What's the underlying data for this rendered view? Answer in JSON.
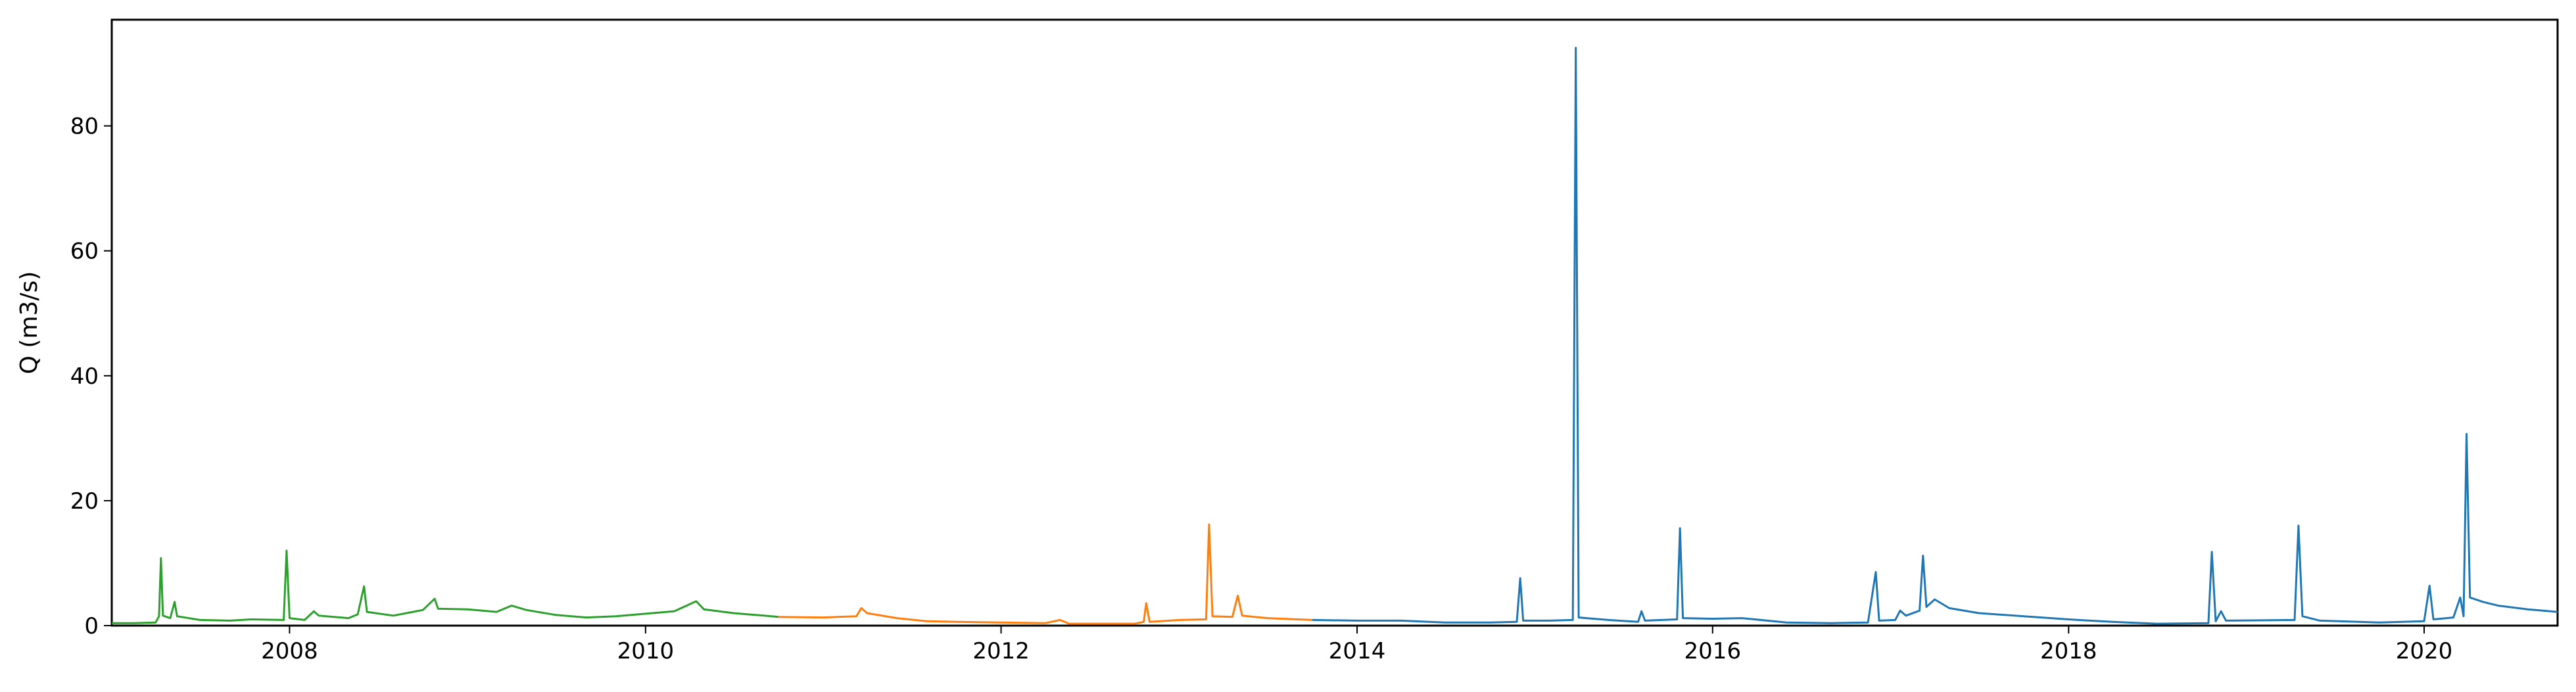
{
  "chart_data": {
    "type": "line",
    "title": "",
    "xlabel": "",
    "ylabel": "Q (m3/s)",
    "xlim": [
      "2007-01-01",
      "2020-10-01"
    ],
    "ylim": [
      0,
      97
    ],
    "x_ticks": [
      {
        "value": "2008-01-01",
        "label": "2008"
      },
      {
        "value": "2010-01-01",
        "label": "2010"
      },
      {
        "value": "2012-01-01",
        "label": "2012"
      },
      {
        "value": "2014-01-01",
        "label": "2014"
      },
      {
        "value": "2016-01-01",
        "label": "2016"
      },
      {
        "value": "2018-01-01",
        "label": "2018"
      },
      {
        "value": "2020-01-01",
        "label": "2020"
      }
    ],
    "y_ticks": [
      0,
      20,
      40,
      60,
      80
    ],
    "grid": false,
    "legend": "none",
    "series": [
      {
        "color": "#2ca02c",
        "points": [
          [
            "2007-01-01",
            0.4
          ],
          [
            "2007-02-15",
            0.4
          ],
          [
            "2007-04-01",
            0.5
          ],
          [
            "2007-04-08",
            1.5
          ],
          [
            "2007-04-12",
            10.8
          ],
          [
            "2007-04-16",
            1.6
          ],
          [
            "2007-05-01",
            1.2
          ],
          [
            "2007-05-10",
            3.8
          ],
          [
            "2007-05-15",
            1.5
          ],
          [
            "2007-07-01",
            0.9
          ],
          [
            "2007-09-01",
            0.8
          ],
          [
            "2007-10-15",
            1.0
          ],
          [
            "2007-12-20",
            0.9
          ],
          [
            "2007-12-26",
            12.0
          ],
          [
            "2008-01-01",
            1.2
          ],
          [
            "2008-02-01",
            0.9
          ],
          [
            "2008-02-20",
            2.3
          ],
          [
            "2008-03-01",
            1.6
          ],
          [
            "2008-05-01",
            1.2
          ],
          [
            "2008-05-20",
            1.8
          ],
          [
            "2008-06-02",
            6.3
          ],
          [
            "2008-06-08",
            2.2
          ],
          [
            "2008-08-01",
            1.6
          ],
          [
            "2008-10-01",
            2.5
          ],
          [
            "2008-10-25",
            4.3
          ],
          [
            "2008-11-01",
            2.7
          ],
          [
            "2009-01-01",
            2.6
          ],
          [
            "2009-03-01",
            2.2
          ],
          [
            "2009-04-01",
            3.2
          ],
          [
            "2009-05-01",
            2.5
          ],
          [
            "2009-07-01",
            1.7
          ],
          [
            "2009-09-01",
            1.3
          ],
          [
            "2009-11-01",
            1.5
          ],
          [
            "2010-01-01",
            1.9
          ],
          [
            "2010-03-01",
            2.3
          ],
          [
            "2010-04-15",
            3.9
          ],
          [
            "2010-05-01",
            2.6
          ],
          [
            "2010-07-01",
            2.0
          ],
          [
            "2010-09-01",
            1.6
          ],
          [
            "2010-10-01",
            1.4
          ]
        ]
      },
      {
        "color": "#ff7f0e",
        "points": [
          [
            "2010-10-01",
            1.4
          ],
          [
            "2011-01-01",
            1.3
          ],
          [
            "2011-03-10",
            1.5
          ],
          [
            "2011-03-20",
            2.8
          ],
          [
            "2011-04-01",
            2.0
          ],
          [
            "2011-06-01",
            1.2
          ],
          [
            "2011-08-01",
            0.7
          ],
          [
            "2011-10-01",
            0.6
          ],
          [
            "2012-01-01",
            0.5
          ],
          [
            "2012-04-01",
            0.4
          ],
          [
            "2012-05-01",
            0.9
          ],
          [
            "2012-05-20",
            0.3
          ],
          [
            "2012-10-01",
            0.3
          ],
          [
            "2012-10-20",
            0.6
          ],
          [
            "2012-10-25",
            3.6
          ],
          [
            "2012-11-01",
            0.6
          ],
          [
            "2013-01-01",
            0.9
          ],
          [
            "2013-02-25",
            1.0
          ],
          [
            "2013-03-03",
            16.2
          ],
          [
            "2013-03-10",
            1.5
          ],
          [
            "2013-04-20",
            1.4
          ],
          [
            "2013-05-01",
            4.8
          ],
          [
            "2013-05-10",
            1.6
          ],
          [
            "2013-07-01",
            1.2
          ],
          [
            "2013-10-01",
            0.9
          ]
        ]
      },
      {
        "color": "#1f77b4",
        "points": [
          [
            "2013-10-01",
            0.9
          ],
          [
            "2014-01-01",
            0.8
          ],
          [
            "2014-04-01",
            0.8
          ],
          [
            "2014-07-01",
            0.5
          ],
          [
            "2014-10-01",
            0.5
          ],
          [
            "2014-11-25",
            0.6
          ],
          [
            "2014-12-02",
            7.6
          ],
          [
            "2014-12-08",
            0.8
          ],
          [
            "2015-02-01",
            0.8
          ],
          [
            "2015-03-20",
            0.9
          ],
          [
            "2015-03-26",
            92.5
          ],
          [
            "2015-04-01",
            1.3
          ],
          [
            "2015-06-01",
            0.9
          ],
          [
            "2015-08-01",
            0.6
          ],
          [
            "2015-08-08",
            2.3
          ],
          [
            "2015-08-15",
            0.8
          ],
          [
            "2015-10-20",
            1.0
          ],
          [
            "2015-10-26",
            15.6
          ],
          [
            "2015-11-01",
            1.2
          ],
          [
            "2016-01-01",
            1.1
          ],
          [
            "2016-03-01",
            1.2
          ],
          [
            "2016-06-01",
            0.5
          ],
          [
            "2016-09-01",
            0.4
          ],
          [
            "2016-11-15",
            0.5
          ],
          [
            "2016-12-01",
            8.6
          ],
          [
            "2016-12-08",
            0.8
          ],
          [
            "2017-01-10",
            0.9
          ],
          [
            "2017-01-20",
            2.4
          ],
          [
            "2017-02-01",
            1.6
          ],
          [
            "2017-03-01",
            2.4
          ],
          [
            "2017-03-08",
            11.2
          ],
          [
            "2017-03-15",
            3.0
          ],
          [
            "2017-04-01",
            4.2
          ],
          [
            "2017-05-01",
            2.8
          ],
          [
            "2017-07-01",
            2.0
          ],
          [
            "2017-10-01",
            1.5
          ],
          [
            "2018-01-01",
            1.0
          ],
          [
            "2018-04-01",
            0.6
          ],
          [
            "2018-07-01",
            0.3
          ],
          [
            "2018-10-15",
            0.4
          ],
          [
            "2018-10-22",
            11.8
          ],
          [
            "2018-10-30",
            0.7
          ],
          [
            "2018-11-10",
            2.3
          ],
          [
            "2018-11-20",
            0.8
          ],
          [
            "2019-04-10",
            0.9
          ],
          [
            "2019-04-18",
            16.0
          ],
          [
            "2019-04-26",
            1.5
          ],
          [
            "2019-06-01",
            0.8
          ],
          [
            "2019-10-01",
            0.5
          ],
          [
            "2020-01-01",
            0.7
          ],
          [
            "2020-01-12",
            6.4
          ],
          [
            "2020-01-20",
            1.0
          ],
          [
            "2020-03-01",
            1.3
          ],
          [
            "2020-03-15",
            4.5
          ],
          [
            "2020-03-22",
            1.5
          ],
          [
            "2020-03-28",
            30.7
          ],
          [
            "2020-04-04",
            4.5
          ],
          [
            "2020-05-01",
            3.8
          ],
          [
            "2020-06-01",
            3.2
          ],
          [
            "2020-08-01",
            2.6
          ],
          [
            "2020-10-01",
            2.2
          ]
        ]
      }
    ]
  }
}
